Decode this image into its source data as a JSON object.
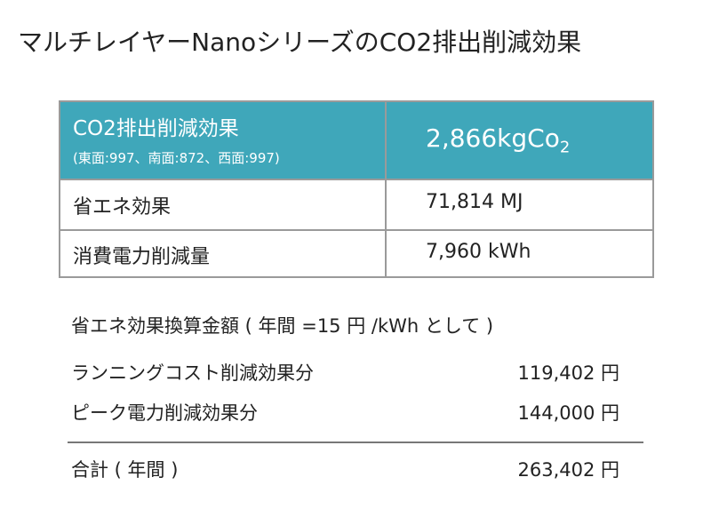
{
  "title": "マルチレイヤーNanoシリーズのCO2排出削減効果",
  "table": {
    "header": {
      "label": "CO2排出削減効果",
      "note": "(東面:997、南面:872、西面:997)",
      "value": "2,866kgCo",
      "value_subscript": "2"
    },
    "rows": [
      [
        "省エネ効果",
        "71,814 MJ"
      ],
      [
        "消費電力削減量",
        "7,960 kWh"
      ]
    ]
  },
  "savings": {
    "heading": "省エネ効果換算金額 ( 年間 =15 円 /kWh として )",
    "items": [
      [
        "ランニングコスト削減効果分",
        "119,402 円"
      ],
      [
        "ピーク電力削減効果分",
        "144,000 円"
      ]
    ],
    "total": [
      "合計 ( 年間 )",
      "263,402 円"
    ]
  }
}
